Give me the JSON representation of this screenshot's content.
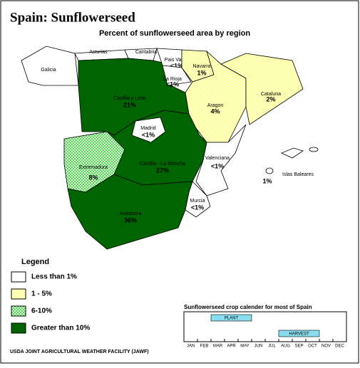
{
  "title": "Spain:  Sunflowerseed",
  "subtitle": "Percent of sunflowerseed  area by region",
  "legend": {
    "title": "Legend",
    "items": [
      {
        "label": "Less than 1%",
        "color": "#ffffff"
      },
      {
        "label": "1 - 5%",
        "color": "#ffff99"
      },
      {
        "label": "6-10%",
        "color": "#99ee99"
      },
      {
        "label": "Greater than 10%",
        "color": "#006400"
      }
    ]
  },
  "regions": [
    {
      "name": "Galicia",
      "category": 0
    },
    {
      "name": "Asturias",
      "category": 0
    },
    {
      "name": "Cantabria",
      "category": 0
    },
    {
      "name": "Castilla y Leon",
      "label": "21%",
      "category": 3
    },
    {
      "name": "Castilla - La Mancha",
      "label": "27%",
      "category": 3
    },
    {
      "name": "Madrid",
      "label": "<1%",
      "category": 0
    },
    {
      "name": "Pais Vasco",
      "label": "<1%",
      "category": 0
    },
    {
      "name": "Navarra",
      "label": "1%",
      "category": 1
    },
    {
      "name": "La Rioja",
      "label": "<1%",
      "category": 0
    },
    {
      "name": "Aragon",
      "label": "4%",
      "category": 1
    },
    {
      "name": "Cataluna",
      "label": "2%",
      "category": 1
    },
    {
      "name": "Extremadura",
      "label": "8%",
      "category": 2
    },
    {
      "name": "Valenciana",
      "label": "<1%",
      "category": 0
    },
    {
      "name": "Murcia",
      "label": "<1%",
      "category": 0
    },
    {
      "name": "Andalucia",
      "label": "36%",
      "category": 3
    },
    {
      "name": "Islas Baleares",
      "label": "1%",
      "category": 0
    }
  ],
  "calendar": {
    "title": "Sunflowerseed crop calender for most of Spain",
    "months": [
      "JAN",
      "FEB",
      "MAR",
      "APR",
      "MAY",
      "JUN",
      "JUL",
      "AUG",
      "SEP",
      "OCT",
      "NOV",
      "DEC"
    ],
    "phases": [
      {
        "label": "PLANT",
        "start": 2,
        "end": 5
      },
      {
        "label": "HARVEST",
        "start": 7,
        "end": 10
      }
    ]
  },
  "footer": "USDA JOINT AGRICULTURAL WEATHER FACILITY (JAWF)"
}
